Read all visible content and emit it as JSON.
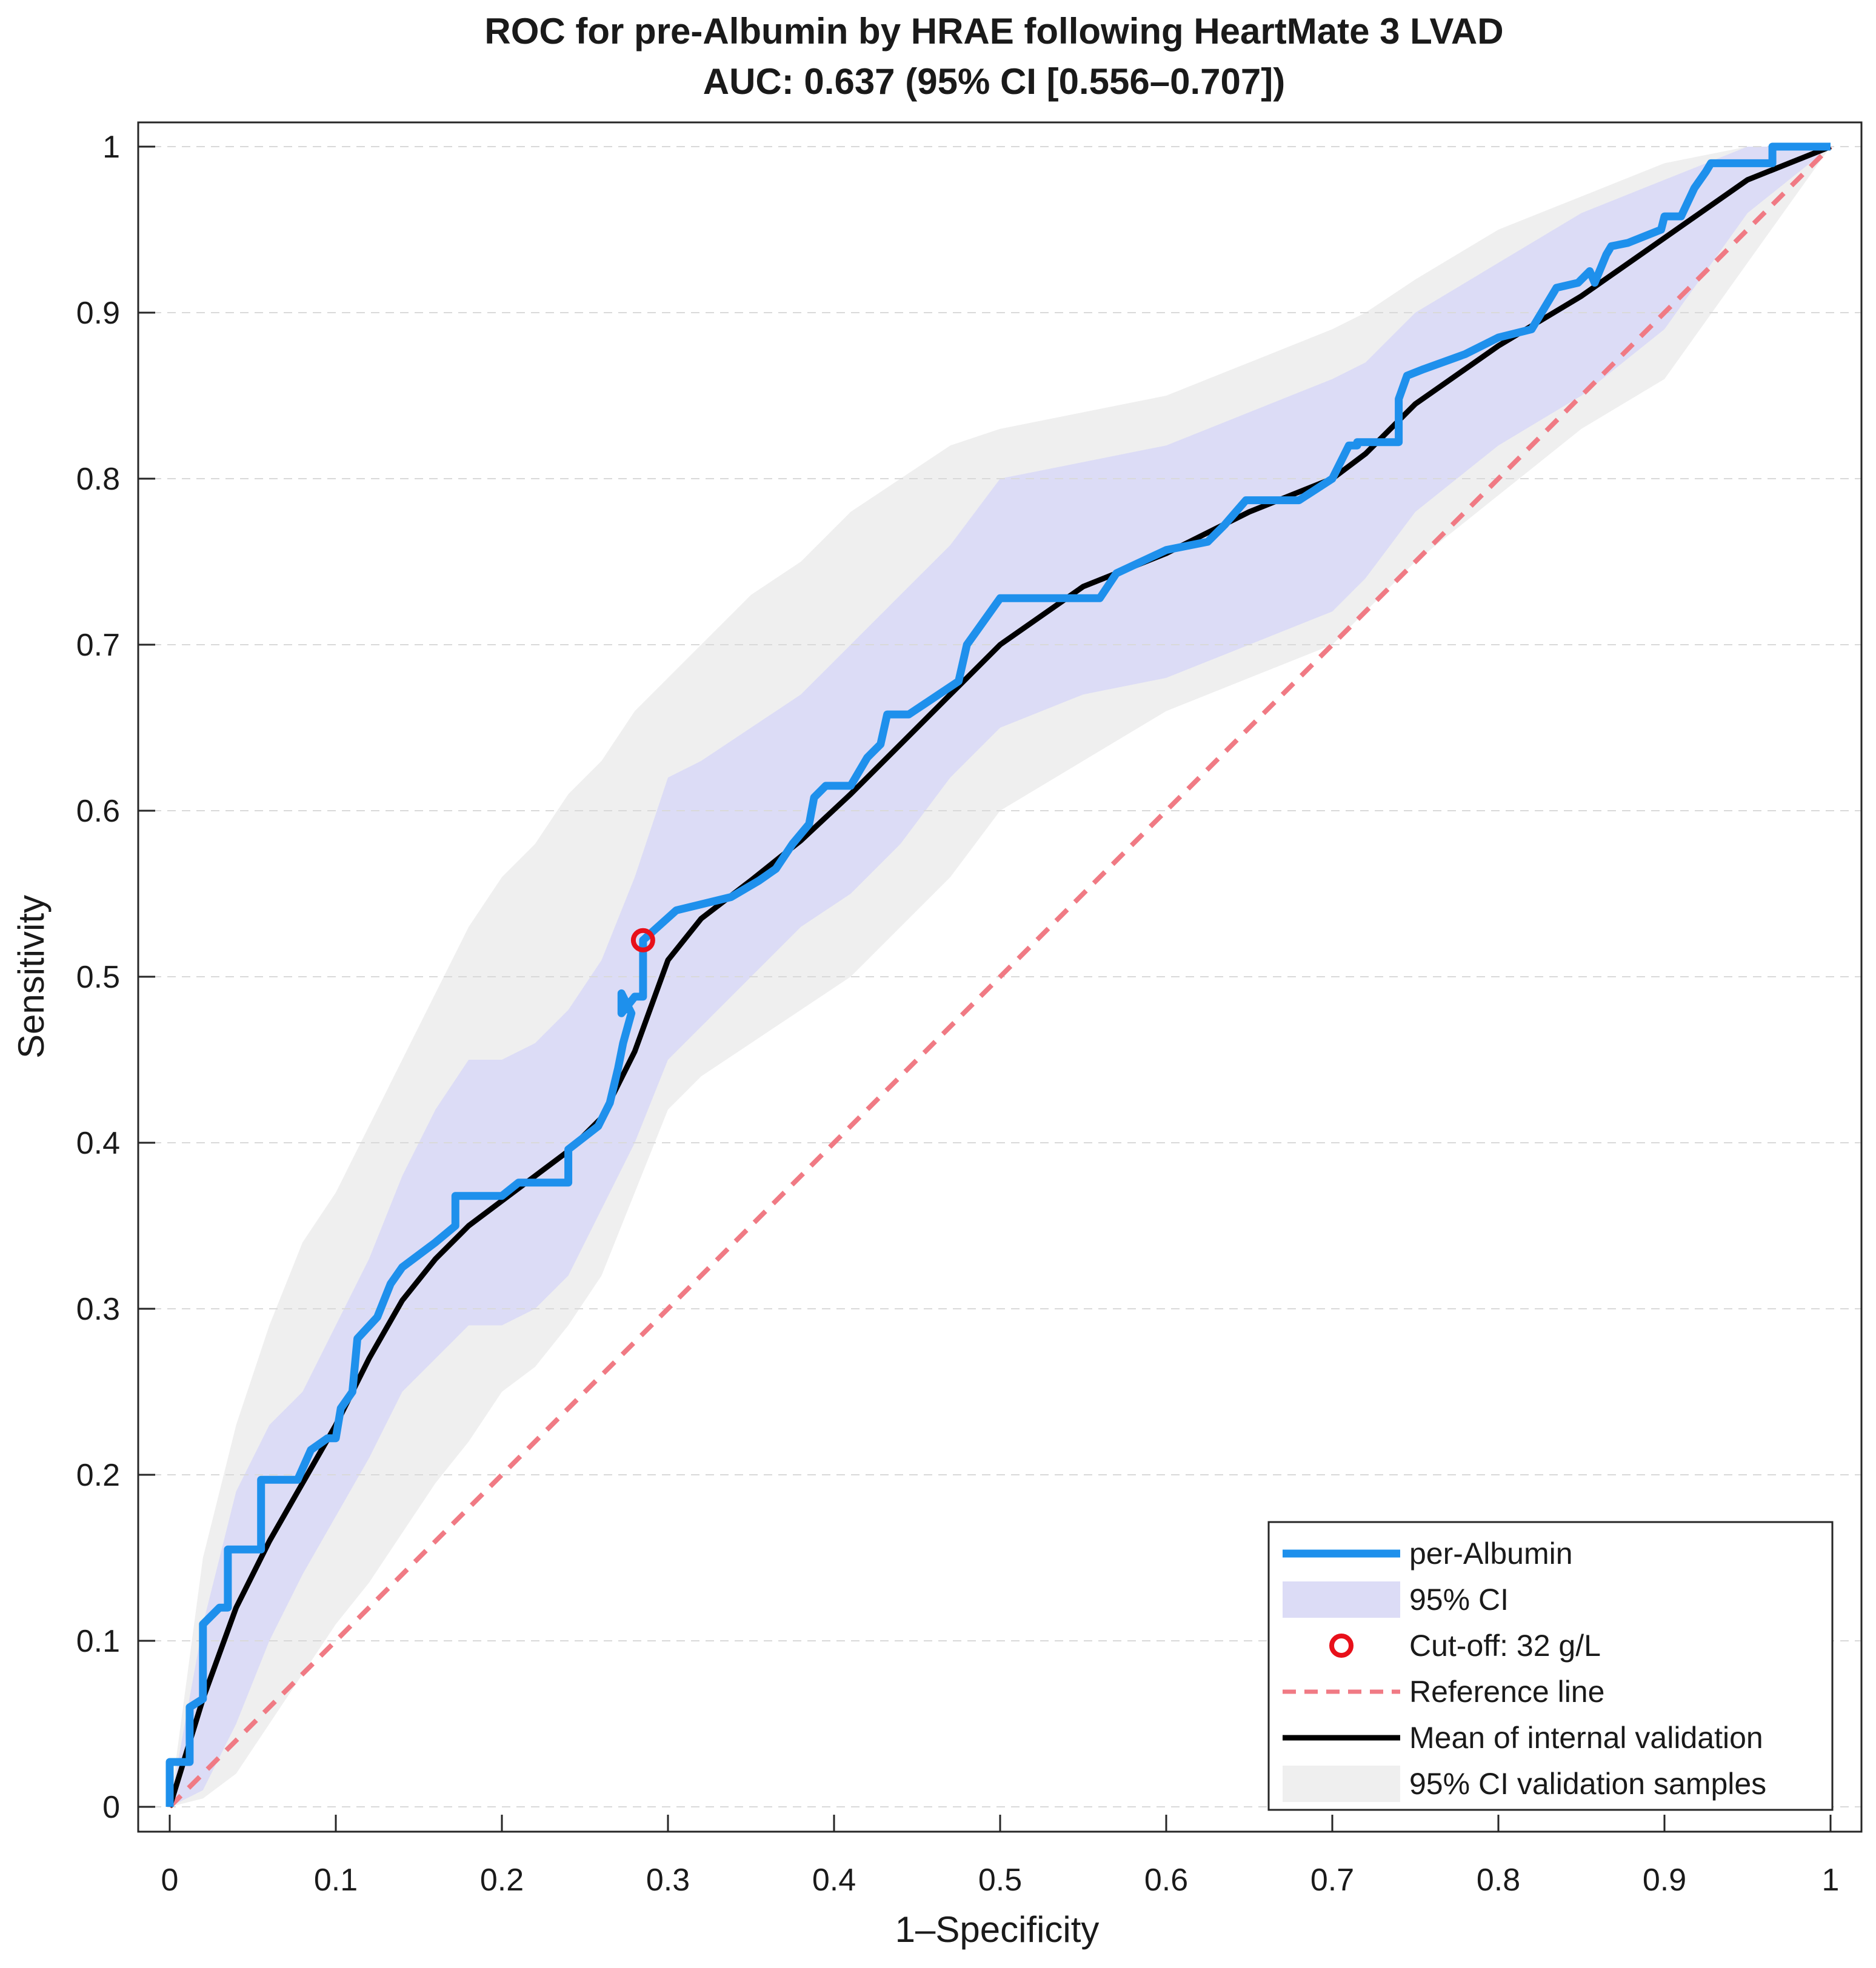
{
  "chart_data": {
    "type": "line",
    "title": "ROC for pre-Albumin by HRAE following HeartMate 3 LVAD",
    "subtitle": "AUC: 0.637 (95% CI [0.556–0.707])",
    "xlabel": "1–Specificity",
    "ylabel": "Sensitivity",
    "xlim": [
      0,
      1
    ],
    "ylim": [
      0,
      1
    ],
    "xticks": [
      "0",
      "0.1",
      "0.2",
      "0.3",
      "0.4",
      "0.5",
      "0.6",
      "0.7",
      "0.8",
      "0.9",
      "1"
    ],
    "yticks": [
      "0",
      "0.1",
      "0.2",
      "0.3",
      "0.4",
      "0.5",
      "0.6",
      "0.7",
      "0.8",
      "0.9",
      "1"
    ],
    "grid": "horizontal dashed",
    "legend_position": "bottom-right",
    "colors": {
      "roc": "#1e90ec",
      "ci_band": "#dcdcf6",
      "validation_band": "#efefef",
      "cutoff": "#e8101a",
      "reference": "#f07a84",
      "mean": "#000000"
    },
    "series": [
      {
        "name": "per-Albumin",
        "style": "step",
        "x": [
          0,
          0,
          0.012,
          0.012,
          0.02,
          0.02,
          0.03,
          0.035,
          0.035,
          0.055,
          0.055,
          0.077,
          0.085,
          0.095,
          0.1,
          0.103,
          0.11,
          0.113,
          0.125,
          0.133,
          0.14,
          0.16,
          0.172,
          0.172,
          0.2,
          0.21,
          0.24,
          0.24,
          0.258,
          0.265,
          0.27,
          0.273,
          0.278,
          0.272,
          0.272,
          0.28,
          0.285,
          0.285,
          0.305,
          0.338,
          0.355,
          0.355,
          0.365,
          0.365,
          0.375,
          0.385,
          0.388,
          0.395,
          0.41,
          0.42,
          0.428,
          0.432,
          0.445,
          0.475,
          0.48,
          0.5,
          0.56,
          0.57,
          0.6,
          0.625,
          0.635,
          0.648,
          0.68,
          0.7,
          0.71,
          0.715,
          0.715,
          0.74,
          0.74,
          0.745,
          0.755,
          0.78,
          0.8,
          0.82,
          0.835,
          0.848,
          0.855,
          0.858,
          0.865,
          0.868,
          0.878,
          0.898,
          0.9,
          0.91,
          0.918,
          0.925,
          0.928,
          0.93,
          0.965,
          0.965,
          1
        ],
        "y": [
          0,
          0.027,
          0.027,
          0.06,
          0.065,
          0.11,
          0.12,
          0.12,
          0.155,
          0.155,
          0.197,
          0.197,
          0.215,
          0.222,
          0.222,
          0.24,
          0.25,
          0.282,
          0.295,
          0.315,
          0.325,
          0.34,
          0.35,
          0.368,
          0.368,
          0.376,
          0.376,
          0.396,
          0.41,
          0.424,
          0.445,
          0.46,
          0.478,
          0.49,
          0.478,
          0.488,
          0.488,
          0.522,
          0.54,
          0.548,
          0.558,
          0.558,
          0.565,
          0.565,
          0.58,
          0.592,
          0.608,
          0.615,
          0.615,
          0.632,
          0.64,
          0.658,
          0.658,
          0.678,
          0.7,
          0.728,
          0.728,
          0.743,
          0.757,
          0.762,
          0.772,
          0.787,
          0.787,
          0.8,
          0.82,
          0.82,
          0.822,
          0.822,
          0.848,
          0.862,
          0.866,
          0.875,
          0.885,
          0.89,
          0.915,
          0.918,
          0.925,
          0.918,
          0.935,
          0.94,
          0.942,
          0.95,
          0.958,
          0.958,
          0.975,
          0.985,
          0.99,
          0.99,
          0.99,
          1,
          1
        ]
      },
      {
        "name": "Mean of internal validation",
        "x": [
          0,
          0.02,
          0.04,
          0.06,
          0.08,
          0.1,
          0.12,
          0.14,
          0.16,
          0.18,
          0.2,
          0.22,
          0.24,
          0.26,
          0.28,
          0.3,
          0.32,
          0.35,
          0.38,
          0.41,
          0.44,
          0.47,
          0.5,
          0.55,
          0.6,
          0.65,
          0.7,
          0.72,
          0.75,
          0.8,
          0.85,
          0.9,
          0.95,
          1
        ],
        "y": [
          0,
          0.065,
          0.12,
          0.16,
          0.195,
          0.23,
          0.27,
          0.305,
          0.33,
          0.35,
          0.365,
          0.38,
          0.395,
          0.415,
          0.455,
          0.51,
          0.535,
          0.558,
          0.582,
          0.61,
          0.64,
          0.67,
          0.7,
          0.735,
          0.755,
          0.78,
          0.8,
          0.815,
          0.845,
          0.88,
          0.91,
          0.945,
          0.98,
          1
        ]
      },
      {
        "name": "Reference line",
        "x": [
          0,
          1
        ],
        "y": [
          0,
          1
        ]
      },
      {
        "name": "95% CI",
        "type": "band",
        "x": [
          0,
          0.02,
          0.04,
          0.06,
          0.08,
          0.1,
          0.12,
          0.14,
          0.16,
          0.18,
          0.2,
          0.22,
          0.24,
          0.26,
          0.28,
          0.3,
          0.32,
          0.35,
          0.38,
          0.41,
          0.44,
          0.47,
          0.5,
          0.55,
          0.6,
          0.65,
          0.7,
          0.72,
          0.75,
          0.8,
          0.85,
          0.9,
          0.95,
          1
        ],
        "lower": [
          0,
          0.01,
          0.05,
          0.1,
          0.14,
          0.175,
          0.21,
          0.25,
          0.27,
          0.29,
          0.29,
          0.3,
          0.32,
          0.36,
          0.4,
          0.45,
          0.47,
          0.5,
          0.53,
          0.55,
          0.58,
          0.62,
          0.65,
          0.67,
          0.68,
          0.7,
          0.72,
          0.74,
          0.78,
          0.82,
          0.85,
          0.89,
          0.96,
          1
        ],
        "upper": [
          0,
          0.11,
          0.19,
          0.23,
          0.25,
          0.29,
          0.33,
          0.38,
          0.42,
          0.45,
          0.45,
          0.46,
          0.48,
          0.51,
          0.56,
          0.62,
          0.63,
          0.65,
          0.67,
          0.7,
          0.73,
          0.76,
          0.8,
          0.81,
          0.82,
          0.84,
          0.86,
          0.87,
          0.9,
          0.93,
          0.96,
          0.98,
          1,
          1
        ]
      },
      {
        "name": "95% CI validation samples",
        "type": "band",
        "x": [
          0,
          0.02,
          0.04,
          0.06,
          0.08,
          0.1,
          0.12,
          0.14,
          0.16,
          0.18,
          0.2,
          0.22,
          0.24,
          0.26,
          0.28,
          0.3,
          0.32,
          0.35,
          0.38,
          0.41,
          0.44,
          0.47,
          0.5,
          0.55,
          0.6,
          0.65,
          0.7,
          0.72,
          0.75,
          0.8,
          0.85,
          0.9,
          0.95,
          1
        ],
        "lower": [
          0,
          0.005,
          0.02,
          0.05,
          0.08,
          0.11,
          0.135,
          0.165,
          0.195,
          0.22,
          0.25,
          0.265,
          0.29,
          0.32,
          0.37,
          0.42,
          0.44,
          0.46,
          0.48,
          0.5,
          0.53,
          0.56,
          0.6,
          0.63,
          0.66,
          0.68,
          0.7,
          0.72,
          0.75,
          0.79,
          0.83,
          0.86,
          0.93,
          1
        ],
        "upper": [
          0,
          0.15,
          0.23,
          0.29,
          0.34,
          0.37,
          0.41,
          0.45,
          0.49,
          0.53,
          0.56,
          0.58,
          0.61,
          0.63,
          0.66,
          0.68,
          0.7,
          0.73,
          0.75,
          0.78,
          0.8,
          0.82,
          0.83,
          0.84,
          0.85,
          0.87,
          0.89,
          0.9,
          0.92,
          0.95,
          0.97,
          0.99,
          1,
          1
        ]
      }
    ],
    "cutoff": {
      "label": "Cut-off: 32 g/L",
      "x": 0.285,
      "y": 0.522
    },
    "legend": [
      {
        "label": "per-Albumin",
        "symbol": "line",
        "color_key": "roc"
      },
      {
        "label": "95% CI",
        "symbol": "patch",
        "color_key": "ci_band"
      },
      {
        "label": "Cut-off: 32 g/L",
        "symbol": "circle",
        "color_key": "cutoff"
      },
      {
        "label": "Reference line",
        "symbol": "dashed",
        "color_key": "reference"
      },
      {
        "label": "Mean of internal validation",
        "symbol": "line",
        "color_key": "mean"
      },
      {
        "label": "95% CI validation samples",
        "symbol": "patch",
        "color_key": "validation_band"
      }
    ]
  }
}
